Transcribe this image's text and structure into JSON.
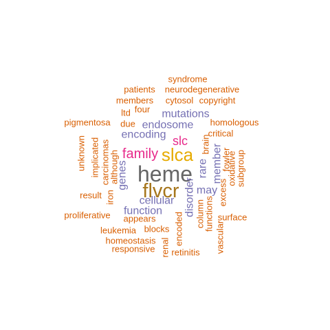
{
  "chart_data": {
    "type": "wordcloud",
    "colors": {
      "rust": "#d95f02",
      "slate": "#7570b3",
      "magenta": "#e7298a",
      "gold": "#e6ab02",
      "olive": "#a6761d",
      "gray": "#666666"
    },
    "words": [
      {
        "text": "heme",
        "freq": 10,
        "color": "#666666",
        "rotated": false
      },
      {
        "text": "flvcr",
        "freq": 9,
        "color": "#a6761d",
        "rotated": false
      },
      {
        "text": "slca",
        "freq": 8,
        "color": "#e6ab02",
        "rotated": false
      },
      {
        "text": "family",
        "freq": 6,
        "color": "#e7298a",
        "rotated": false
      },
      {
        "text": "slc",
        "freq": 6,
        "color": "#e7298a",
        "rotated": false
      },
      {
        "text": "mutations",
        "freq": 4,
        "color": "#7570b3",
        "rotated": false
      },
      {
        "text": "endosome",
        "freq": 4,
        "color": "#7570b3",
        "rotated": false
      },
      {
        "text": "encoding",
        "freq": 4,
        "color": "#7570b3",
        "rotated": false
      },
      {
        "text": "cellular",
        "freq": 4,
        "color": "#7570b3",
        "rotated": false
      },
      {
        "text": "function",
        "freq": 4,
        "color": "#7570b3",
        "rotated": false
      },
      {
        "text": "genes",
        "freq": 4,
        "color": "#7570b3",
        "rotated": true
      },
      {
        "text": "disorder",
        "freq": 4,
        "color": "#7570b3",
        "rotated": true
      },
      {
        "text": "rare",
        "freq": 4,
        "color": "#7570b3",
        "rotated": true
      },
      {
        "text": "may",
        "freq": 4,
        "color": "#7570b3",
        "rotated": false
      },
      {
        "text": "member",
        "freq": 4,
        "color": "#7570b3",
        "rotated": true
      },
      {
        "text": "syndrome",
        "freq": 2,
        "color": "#d95f02",
        "rotated": false
      },
      {
        "text": "patients",
        "freq": 2,
        "color": "#d95f02",
        "rotated": false
      },
      {
        "text": "neurodegenerative",
        "freq": 2,
        "color": "#d95f02",
        "rotated": false
      },
      {
        "text": "members",
        "freq": 2,
        "color": "#d95f02",
        "rotated": false
      },
      {
        "text": "cytosol",
        "freq": 2,
        "color": "#d95f02",
        "rotated": false
      },
      {
        "text": "copyright",
        "freq": 2,
        "color": "#d95f02",
        "rotated": false
      },
      {
        "text": "ltd",
        "freq": 2,
        "color": "#d95f02",
        "rotated": false
      },
      {
        "text": "four",
        "freq": 2,
        "color": "#d95f02",
        "rotated": false
      },
      {
        "text": "pigmentosa",
        "freq": 2,
        "color": "#d95f02",
        "rotated": false
      },
      {
        "text": "due",
        "freq": 2,
        "color": "#d95f02",
        "rotated": false
      },
      {
        "text": "homologous",
        "freq": 2,
        "color": "#d95f02",
        "rotated": false
      },
      {
        "text": "critical",
        "freq": 2,
        "color": "#d95f02",
        "rotated": false
      },
      {
        "text": "unknown",
        "freq": 2,
        "color": "#d95f02",
        "rotated": true
      },
      {
        "text": "implicated",
        "freq": 2,
        "color": "#d95f02",
        "rotated": true
      },
      {
        "text": "carcinomas",
        "freq": 2,
        "color": "#d95f02",
        "rotated": true
      },
      {
        "text": "although",
        "freq": 2,
        "color": "#d95f02",
        "rotated": true
      },
      {
        "text": "brain",
        "freq": 2,
        "color": "#d95f02",
        "rotated": true
      },
      {
        "text": "fowler",
        "freq": 2,
        "color": "#d95f02",
        "rotated": true
      },
      {
        "text": "subgroup",
        "freq": 2,
        "color": "#d95f02",
        "rotated": true
      },
      {
        "text": "oxidative",
        "freq": 2,
        "color": "#d95f02",
        "rotated": true
      },
      {
        "text": "excess",
        "freq": 2,
        "color": "#d95f02",
        "rotated": true
      },
      {
        "text": "result",
        "freq": 2,
        "color": "#d95f02",
        "rotated": false
      },
      {
        "text": "iron",
        "freq": 2,
        "color": "#d95f02",
        "rotated": true
      },
      {
        "text": "proliferative",
        "freq": 2,
        "color": "#d95f02",
        "rotated": false
      },
      {
        "text": "appears",
        "freq": 2,
        "color": "#d95f02",
        "rotated": false
      },
      {
        "text": "column",
        "freq": 2,
        "color": "#d95f02",
        "rotated": true
      },
      {
        "text": "functions",
        "freq": 2,
        "color": "#d95f02",
        "rotated": true
      },
      {
        "text": "surface",
        "freq": 2,
        "color": "#d95f02",
        "rotated": false
      },
      {
        "text": "leukemia",
        "freq": 2,
        "color": "#d95f02",
        "rotated": false
      },
      {
        "text": "blocks",
        "freq": 2,
        "color": "#d95f02",
        "rotated": false
      },
      {
        "text": "encoded",
        "freq": 2,
        "color": "#d95f02",
        "rotated": true
      },
      {
        "text": "homeostasis",
        "freq": 2,
        "color": "#d95f02",
        "rotated": false
      },
      {
        "text": "vascular",
        "freq": 2,
        "color": "#d95f02",
        "rotated": true
      },
      {
        "text": "responsive",
        "freq": 2,
        "color": "#d95f02",
        "rotated": false
      },
      {
        "text": "renal",
        "freq": 2,
        "color": "#d95f02",
        "rotated": true
      },
      {
        "text": "retinitis",
        "freq": 2,
        "color": "#d95f02",
        "rotated": false
      }
    ]
  }
}
